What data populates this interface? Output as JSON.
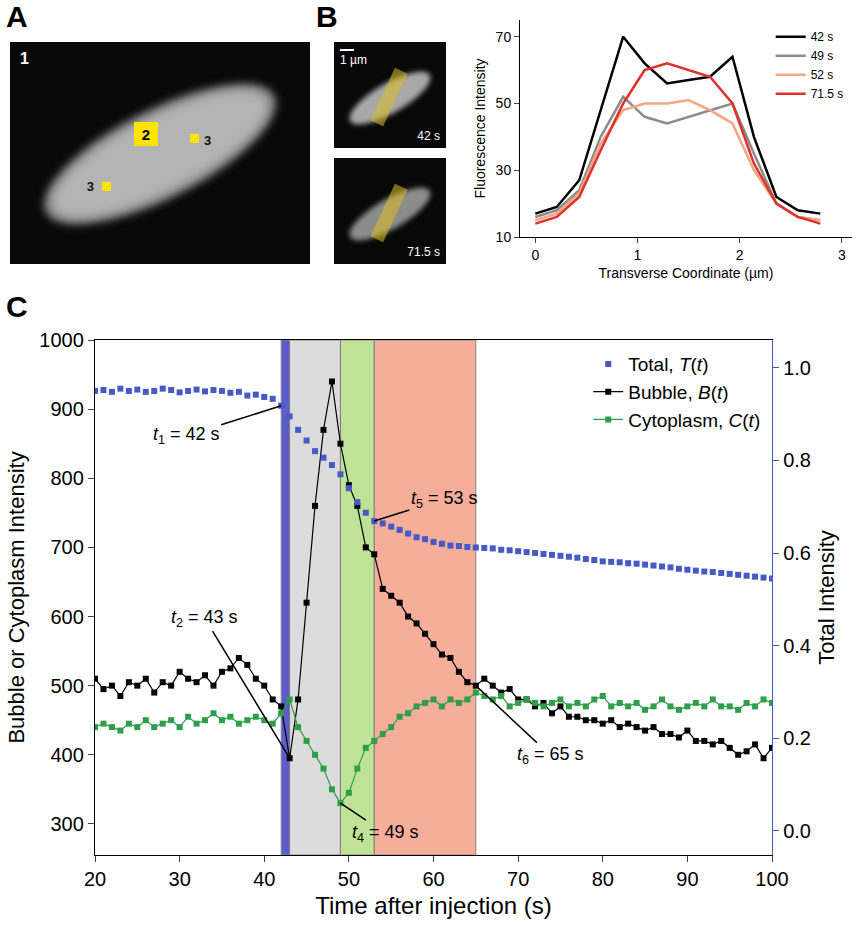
{
  "panel_labels": [
    "A",
    "B",
    "C"
  ],
  "micrographs": {
    "A": {
      "frame_label": "1",
      "roi_labels": [
        "2",
        "3",
        "3"
      ]
    },
    "B": {
      "scale_bar": "1 µm",
      "frames": [
        "42 s",
        "71.5 s"
      ]
    }
  },
  "chart_data": [
    {
      "type": "line",
      "x_label": "Transverse Coordinate (µm)",
      "y_label": "Fluorescence Intensity",
      "x": [
        0,
        0.21,
        0.43,
        0.64,
        0.86,
        1.07,
        1.29,
        1.5,
        1.71,
        1.93,
        2.14,
        2.36,
        2.57,
        2.79
      ],
      "series": [
        {
          "name": "42 s",
          "color": "#000000",
          "values": [
            17,
            19,
            27,
            48,
            70,
            62,
            56,
            57,
            58,
            64,
            40,
            22,
            18,
            17
          ]
        },
        {
          "name": "49 s",
          "color": "#8c8c8c",
          "values": [
            16,
            18,
            24,
            40,
            52,
            46,
            44,
            46,
            48,
            50,
            35,
            20,
            16,
            15
          ]
        },
        {
          "name": "52 s",
          "color": "#f4a582",
          "values": [
            15,
            17,
            23,
            38,
            48,
            50,
            50,
            51,
            48,
            44,
            30,
            20,
            16,
            15
          ]
        },
        {
          "name": "71.5 s",
          "color": "#e0302a",
          "values": [
            14,
            16,
            22,
            36,
            50,
            60,
            62,
            60,
            58,
            50,
            32,
            20,
            16,
            14
          ]
        }
      ],
      "xlim": [
        -0.15,
        3.1
      ],
      "xticks": [
        0,
        1,
        2,
        3
      ],
      "ylim": [
        10,
        75
      ],
      "yticks": [
        10,
        30,
        50,
        70
      ],
      "legend": "upper right",
      "grid": false
    },
    {
      "type": "line",
      "x_label": "Time after injection (s)",
      "y_label": "Bubble or Cytoplasm Intensity",
      "y2_label": "Total Intensity",
      "x": [
        20,
        21,
        22,
        23,
        24,
        25,
        26,
        27,
        28,
        29,
        30,
        31,
        32,
        33,
        34,
        35,
        36,
        37,
        38,
        39,
        40,
        41,
        42,
        43,
        44,
        45,
        46,
        47,
        48,
        49,
        50,
        51,
        52,
        53,
        54,
        55,
        56,
        57,
        58,
        59,
        60,
        61,
        62,
        63,
        64,
        65,
        66,
        67,
        68,
        69,
        70,
        71,
        72,
        73,
        74,
        75,
        76,
        77,
        78,
        79,
        80,
        81,
        82,
        83,
        84,
        85,
        86,
        87,
        88,
        89,
        90,
        91,
        92,
        93,
        94,
        95,
        96,
        97,
        98,
        99,
        100
      ],
      "series": [
        {
          "name": "Total, T(t)",
          "color": "#4659c6",
          "axis": "y2",
          "type": "scatter",
          "marker": "square",
          "values": [
            0.95,
            0.952,
            0.948,
            0.955,
            0.95,
            0.953,
            0.948,
            0.95,
            0.955,
            0.952,
            0.947,
            0.95,
            0.953,
            0.949,
            0.952,
            0.95,
            0.946,
            0.948,
            0.94,
            0.942,
            0.937,
            0.933,
            0.918,
            0.895,
            0.866,
            0.843,
            0.82,
            0.806,
            0.79,
            0.77,
            0.74,
            0.71,
            0.687,
            0.669,
            0.664,
            0.657,
            0.65,
            0.642,
            0.634,
            0.63,
            0.624,
            0.62,
            0.616,
            0.615,
            0.613,
            0.612,
            0.611,
            0.61,
            0.607,
            0.606,
            0.604,
            0.602,
            0.6,
            0.598,
            0.596,
            0.594,
            0.592,
            0.59,
            0.587,
            0.585,
            0.582,
            0.581,
            0.58,
            0.578,
            0.577,
            0.575,
            0.573,
            0.571,
            0.569,
            0.566,
            0.564,
            0.562,
            0.56,
            0.559,
            0.557,
            0.555,
            0.553,
            0.551,
            0.549,
            0.547,
            0.545
          ]
        },
        {
          "name": "Bubble, B(t)",
          "color": "#000000",
          "type": "line",
          "marker": "square",
          "values": [
            510,
            495,
            500,
            485,
            505,
            500,
            510,
            490,
            505,
            500,
            520,
            510,
            505,
            515,
            500,
            520,
            525,
            540,
            530,
            510,
            500,
            480,
            470,
            395,
            480,
            620,
            760,
            870,
            940,
            850,
            790,
            760,
            700,
            690,
            640,
            630,
            620,
            600,
            590,
            575,
            560,
            545,
            540,
            520,
            505,
            500,
            510,
            500,
            490,
            495,
            480,
            480,
            470,
            475,
            460,
            470,
            455,
            455,
            450,
            450,
            445,
            450,
            440,
            445,
            440,
            435,
            440,
            430,
            430,
            425,
            435,
            420,
            420,
            415,
            420,
            410,
            400,
            405,
            415,
            395,
            410
          ]
        },
        {
          "name": "Cytoplasm, C(t)",
          "color": "#2e9e4a",
          "type": "line",
          "marker": "square",
          "values": [
            440,
            445,
            440,
            435,
            445,
            440,
            450,
            440,
            445,
            450,
            440,
            455,
            445,
            450,
            460,
            450,
            455,
            445,
            450,
            455,
            450,
            445,
            460,
            480,
            440,
            420,
            400,
            380,
            350,
            330,
            345,
            380,
            410,
            420,
            430,
            440,
            455,
            460,
            470,
            475,
            480,
            470,
            480,
            475,
            480,
            490,
            485,
            480,
            485,
            470,
            475,
            480,
            475,
            470,
            475,
            480,
            470,
            475,
            470,
            480,
            485,
            470,
            475,
            470,
            475,
            465,
            470,
            480,
            470,
            465,
            470,
            475,
            470,
            480,
            470,
            470,
            465,
            475,
            470,
            480,
            475
          ]
        }
      ],
      "xlim": [
        20,
        100
      ],
      "xticks": [
        20,
        30,
        40,
        50,
        60,
        70,
        80,
        90,
        100
      ],
      "ylim": [
        255,
        1000
      ],
      "yticks": [
        300,
        400,
        500,
        600,
        700,
        800,
        900,
        1000
      ],
      "y2lim": [
        -0.052,
        1.06
      ],
      "y2ticks": [
        {
          "value": 0,
          "label": "0.0"
        },
        0.2,
        0.4,
        0.6,
        0.8,
        {
          "value": 1,
          "label": "1.0"
        }
      ],
      "regions": [
        {
          "x0": 42,
          "x1": 43,
          "color": "#4b4bc8"
        },
        {
          "x0": 43,
          "x1": 49,
          "color": "#d9d9d9"
        },
        {
          "x0": 49,
          "x1": 53,
          "color": "#b8e08c"
        },
        {
          "x0": 53,
          "x1": 65,
          "color": "#f6a58e"
        }
      ],
      "annotations": [
        {
          "text": "t1 = 42 s",
          "x": 42,
          "y": 0.918,
          "axis": "y2"
        },
        {
          "text": "t2 = 43 s",
          "x": 43,
          "y": 395
        },
        {
          "text": "t4 = 49 s",
          "x": 49,
          "y": 330
        },
        {
          "text": "t5 = 53 s",
          "x": 53,
          "y": 0.669,
          "axis": "y2"
        },
        {
          "text": "t6 = 65 s",
          "x": 65,
          "y": 500
        }
      ],
      "legend": "upper right",
      "grid": false
    }
  ]
}
